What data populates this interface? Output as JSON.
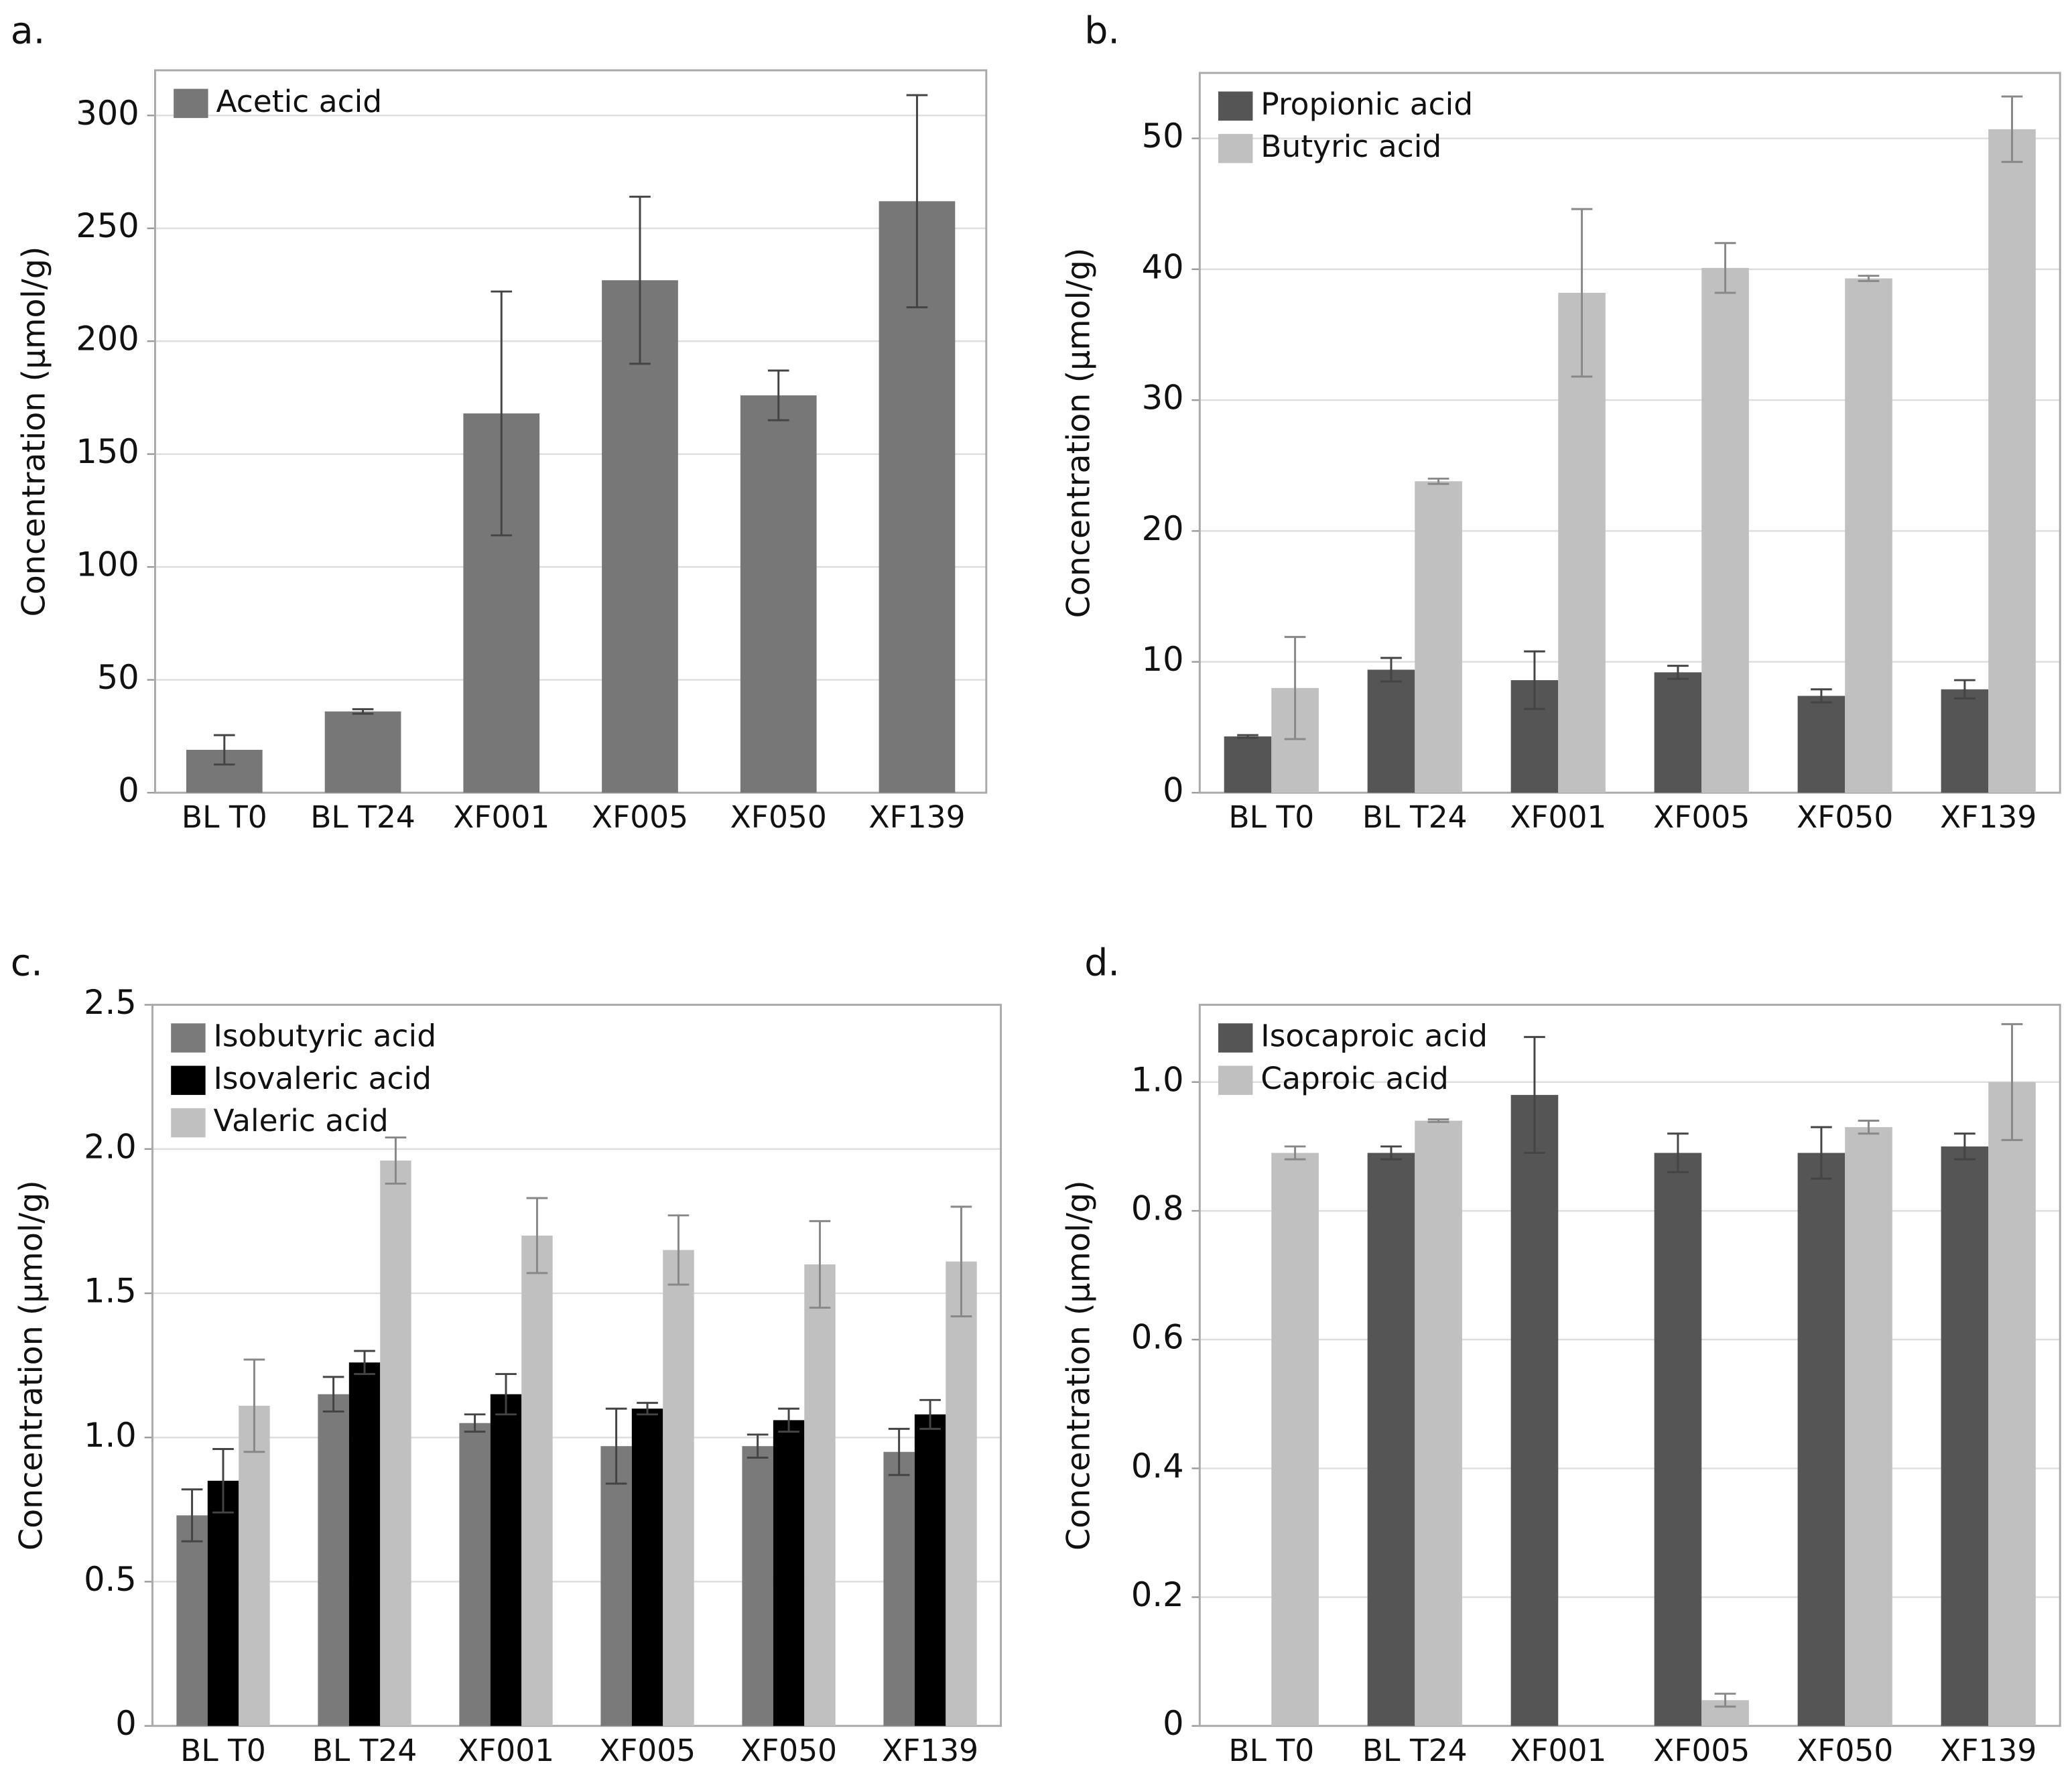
{
  "chart_data": [
    {
      "type": "bar",
      "panel_label": "a.",
      "ylabel": "Concentration (µmol/g)",
      "categories": [
        "BL T0",
        "BL T24",
        "XF001",
        "XF005",
        "XF050",
        "XF139"
      ],
      "series": [
        {
          "name": "Acetic acid",
          "color": "#777777",
          "values": [
            19,
            36,
            168,
            227,
            176,
            262
          ],
          "errors": [
            6.5,
            1,
            54,
            37,
            11,
            47
          ]
        }
      ],
      "ylim": [
        0,
        320
      ],
      "yticks": [
        0,
        50,
        100,
        150,
        200,
        250,
        300
      ],
      "grid": true,
      "legend": "upper left"
    },
    {
      "type": "bar",
      "panel_label": "b.",
      "ylabel": "Concentration (µmol/g)",
      "categories": [
        "BL T0",
        "BL T24",
        "XF001",
        "XF005",
        "XF050",
        "XF139"
      ],
      "series": [
        {
          "name": "Propionic acid",
          "color": "#555555",
          "values": [
            4.3,
            9.4,
            8.6,
            9.2,
            7.4,
            7.9
          ],
          "errors": [
            0.1,
            0.9,
            2.2,
            0.5,
            0.5,
            0.7
          ]
        },
        {
          "name": "Butyric acid",
          "color": "#c0c0c0",
          "values": [
            8.0,
            23.8,
            38.2,
            40.1,
            39.3,
            50.7
          ],
          "errors": [
            3.9,
            0.2,
            6.4,
            1.9,
            0.2,
            2.5
          ]
        }
      ],
      "ylim": [
        0,
        55
      ],
      "yticks": [
        0,
        10,
        20,
        30,
        40,
        50
      ],
      "grid": true,
      "legend": "upper left"
    },
    {
      "type": "bar",
      "panel_label": "c.",
      "ylabel": "Concentration (µmol/g)",
      "categories": [
        "BL T0",
        "BL T24",
        "XF001",
        "XF005",
        "XF050",
        "XF139"
      ],
      "series": [
        {
          "name": "Isobutyric acid",
          "color": "#7a7a7a",
          "values": [
            0.73,
            1.15,
            1.05,
            0.97,
            0.97,
            0.95
          ],
          "errors": [
            0.09,
            0.06,
            0.03,
            0.13,
            0.04,
            0.08
          ]
        },
        {
          "name": "Isovaleric acid",
          "color": "#000000",
          "values": [
            0.85,
            1.26,
            1.15,
            1.1,
            1.06,
            1.08
          ],
          "errors": [
            0.11,
            0.04,
            0.07,
            0.02,
            0.04,
            0.05
          ]
        },
        {
          "name": "Valeric acid",
          "color": "#c0c0c0",
          "values": [
            1.11,
            1.96,
            1.7,
            1.65,
            1.6,
            1.61
          ],
          "errors": [
            0.16,
            0.08,
            0.13,
            0.12,
            0.15,
            0.19
          ]
        }
      ],
      "ylim": [
        0,
        2.5
      ],
      "yticks": [
        0,
        0.5,
        {
          "value": 1,
          "label": "1.0"
        },
        1.5,
        {
          "value": 2,
          "label": "2.0"
        },
        2.5
      ],
      "grid": true,
      "legend": "upper left"
    },
    {
      "type": "bar",
      "panel_label": "d.",
      "ylabel": "Concentration (µmol/g)",
      "categories": [
        "BL T0",
        "BL T24",
        "XF001",
        "XF005",
        "XF050",
        "XF139"
      ],
      "series": [
        {
          "name": "Isocaproic acid",
          "color": "#555555",
          "values": [
            null,
            0.89,
            0.98,
            0.89,
            0.89,
            0.9
          ],
          "errors": [
            null,
            0.01,
            0.09,
            0.03,
            0.04,
            0.02
          ]
        },
        {
          "name": "Caproic acid",
          "color": "#c0c0c0",
          "values": [
            0.89,
            0.94,
            null,
            0.04,
            0.93,
            1.0
          ],
          "errors": [
            0.01,
            0.002,
            null,
            0.01,
            0.01,
            0.09
          ]
        }
      ],
      "ylim": [
        0,
        1.12
      ],
      "yticks": [
        0,
        0.2,
        0.4,
        0.6,
        0.8,
        {
          "value": 1,
          "label": "1.0"
        }
      ],
      "grid": true,
      "legend": "upper left"
    }
  ]
}
